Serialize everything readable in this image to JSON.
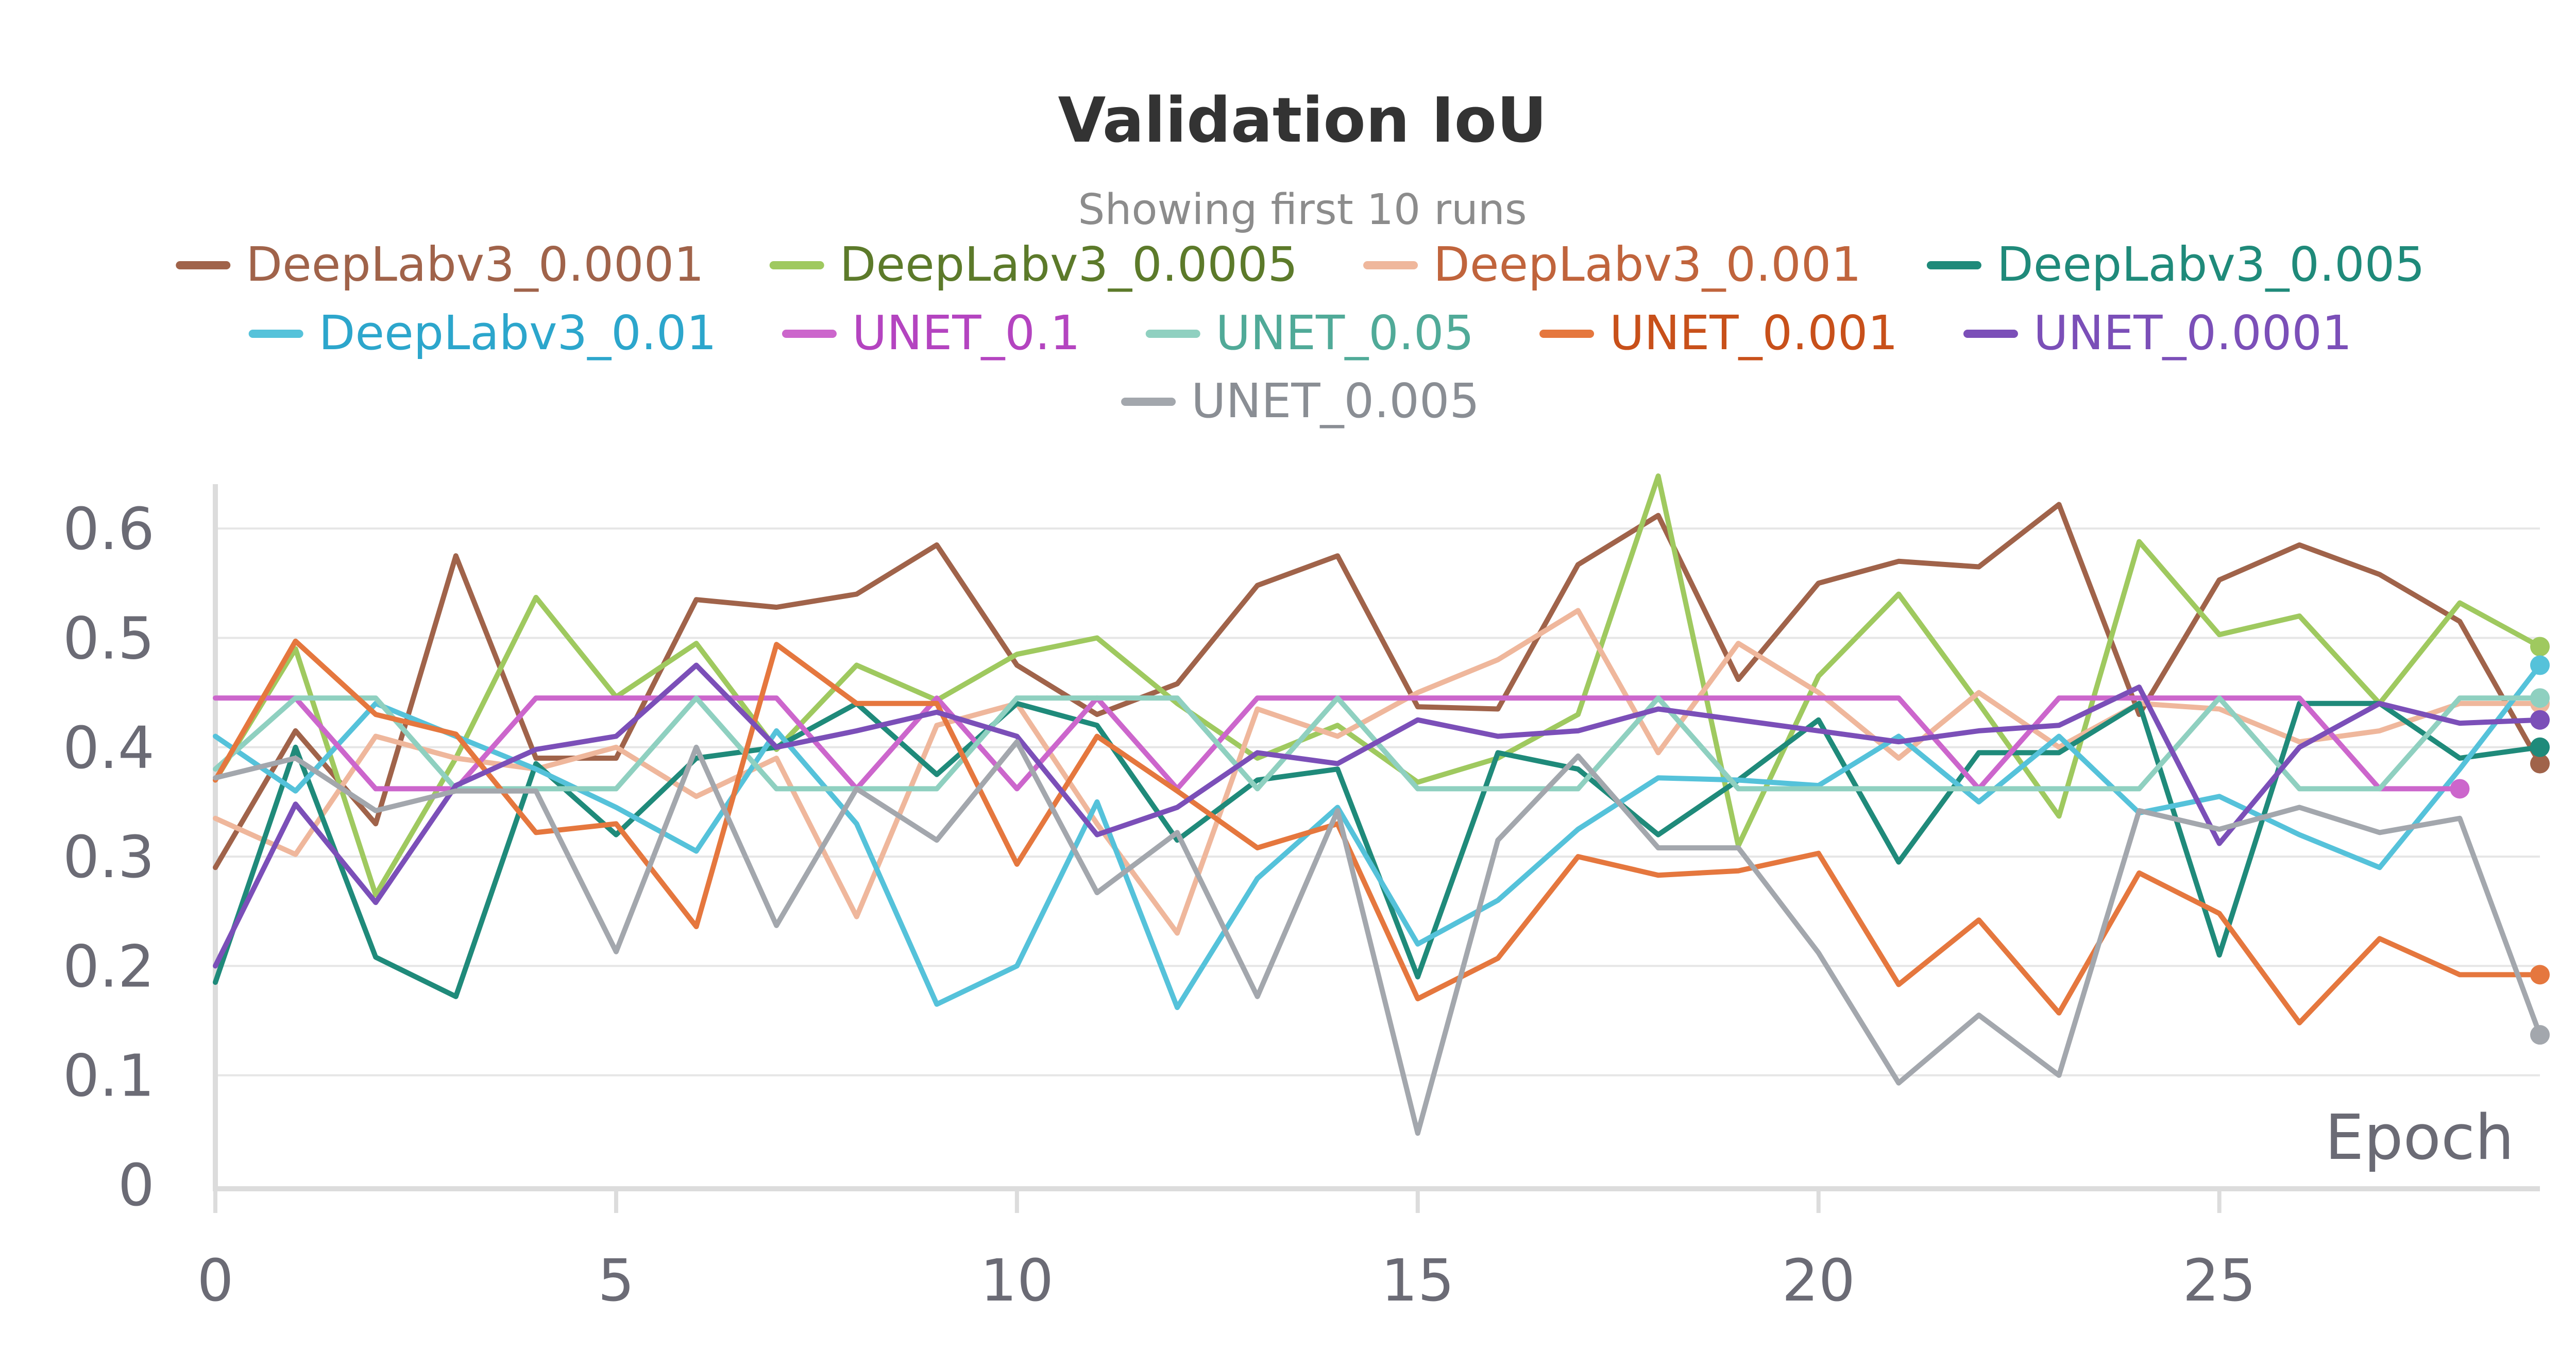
{
  "chart_data": {
    "type": "line",
    "title": "Validation IoU",
    "subtitle": "Showing first 10 runs",
    "xlabel": "Epoch",
    "ylabel": "",
    "xlim": [
      0,
      29
    ],
    "ylim": [
      0,
      0.65
    ],
    "xticks": [
      0,
      5,
      10,
      15,
      20,
      25
    ],
    "yticks": [
      0,
      0.1,
      0.2,
      0.3,
      0.4,
      0.5,
      0.6
    ],
    "xtick_labels": [
      "0",
      "5",
      "10",
      "15",
      "20",
      "25"
    ],
    "ytick_labels": [
      "0",
      "0.1",
      "0.2",
      "0.3",
      "0.4",
      "0.5",
      "0.6"
    ],
    "grid": true,
    "legend_position": "top",
    "series": [
      {
        "name": "DeepLabv3_0.0001",
        "color": "#a0634a",
        "text_color": "#a0634a",
        "values": [
          0.29,
          0.415,
          0.33,
          0.575,
          0.39,
          0.39,
          0.535,
          0.528,
          0.54,
          0.585,
          0.475,
          0.43,
          0.458,
          0.548,
          0.575,
          0.437,
          0.435,
          0.567,
          0.612,
          0.462,
          0.55,
          0.57,
          0.565,
          0.622,
          0.43,
          0.553,
          0.585,
          0.558,
          0.515,
          0.385
        ]
      },
      {
        "name": "DeepLabv3_0.0005",
        "color": "#9fc95f",
        "text_color": "#5c7a2a",
        "values": [
          0.37,
          0.49,
          0.265,
          0.39,
          0.537,
          0.446,
          0.495,
          0.398,
          0.475,
          0.443,
          0.485,
          0.5,
          0.44,
          0.39,
          0.42,
          0.368,
          0.39,
          0.43,
          0.648,
          0.31,
          0.465,
          0.54,
          0.44,
          0.337,
          0.588,
          0.503,
          0.52,
          0.44,
          0.532,
          0.492
        ]
      },
      {
        "name": "DeepLabv3_0.001",
        "color": "#efb79c",
        "text_color": "#c0643c",
        "values": [
          0.335,
          0.302,
          0.41,
          0.39,
          0.38,
          0.4,
          0.355,
          0.39,
          0.245,
          0.42,
          0.44,
          0.33,
          0.23,
          0.435,
          0.41,
          0.45,
          0.48,
          0.525,
          0.395,
          0.495,
          0.45,
          0.39,
          0.45,
          0.4,
          0.44,
          0.435,
          0.405,
          0.415,
          0.44,
          0.44
        ]
      },
      {
        "name": "DeepLabv3_0.005",
        "color": "#1f8a7a",
        "text_color": "#1f8a7a",
        "values": [
          0.185,
          0.4,
          0.208,
          0.172,
          0.385,
          0.32,
          0.39,
          0.4,
          0.44,
          0.375,
          0.44,
          0.42,
          0.315,
          0.37,
          0.38,
          0.19,
          0.395,
          0.38,
          0.32,
          0.37,
          0.425,
          0.295,
          0.395,
          0.395,
          0.44,
          0.21,
          0.44,
          0.44,
          0.39,
          0.4
        ]
      },
      {
        "name": "DeepLabv3_0.01",
        "color": "#55c2da",
        "text_color": "#2ca6cc",
        "values": [
          0.41,
          0.36,
          0.44,
          0.41,
          0.38,
          0.345,
          0.305,
          0.415,
          0.33,
          0.165,
          0.2,
          0.35,
          0.162,
          0.28,
          0.345,
          0.22,
          0.26,
          0.325,
          0.372,
          0.37,
          0.365,
          0.41,
          0.35,
          0.41,
          0.34,
          0.355,
          0.32,
          0.29,
          0.38,
          0.475
        ]
      },
      {
        "name": "UNET_0.1",
        "color": "#cc66cc",
        "text_color": "#b444c0",
        "values": [
          0.445,
          0.445,
          0.362,
          0.362,
          0.445,
          0.445,
          0.445,
          0.445,
          0.362,
          0.445,
          0.362,
          0.445,
          0.362,
          0.445,
          0.445,
          0.445,
          0.445,
          0.445,
          0.445,
          0.445,
          0.445,
          0.445,
          0.362,
          0.445,
          0.445,
          0.445,
          0.445,
          0.362,
          0.362,
          null
        ]
      },
      {
        "name": "UNET_0.05",
        "color": "#8fd0c0",
        "text_color": "#50aa98",
        "values": [
          0.38,
          0.445,
          0.445,
          0.362,
          0.362,
          0.362,
          0.445,
          0.362,
          0.362,
          0.362,
          0.445,
          0.445,
          0.445,
          0.362,
          0.445,
          0.362,
          0.362,
          0.362,
          0.445,
          0.362,
          0.362,
          0.362,
          0.362,
          0.362,
          0.362,
          0.445,
          0.362,
          0.362,
          0.445,
          0.445
        ]
      },
      {
        "name": "UNET_0.001",
        "color": "#e5773e",
        "text_color": "#c8501a",
        "values": [
          0.37,
          0.497,
          0.43,
          0.412,
          0.322,
          0.33,
          0.236,
          0.494,
          0.44,
          0.44,
          0.293,
          0.41,
          0.36,
          0.308,
          0.33,
          0.17,
          0.207,
          0.3,
          0.283,
          0.287,
          0.303,
          0.183,
          0.242,
          0.157,
          0.285,
          0.248,
          0.148,
          0.225,
          0.192,
          0.192
        ]
      },
      {
        "name": "UNET_0.0001",
        "color": "#7b4fb8",
        "text_color": "#7b4fb8",
        "values": [
          0.2,
          0.348,
          0.258,
          0.365,
          0.398,
          0.41,
          0.475,
          0.4,
          0.415,
          0.432,
          0.41,
          0.32,
          0.345,
          0.395,
          0.385,
          0.425,
          0.41,
          0.415,
          0.435,
          0.425,
          0.415,
          0.405,
          0.415,
          0.42,
          0.455,
          0.312,
          0.4,
          0.44,
          0.422,
          0.425
        ]
      },
      {
        "name": "UNET_0.005",
        "color": "#a3a7ad",
        "text_color": "#8a8e94",
        "values": [
          0.372,
          0.39,
          0.342,
          0.36,
          0.36,
          0.213,
          0.4,
          0.237,
          0.362,
          0.315,
          0.405,
          0.267,
          0.322,
          0.172,
          0.342,
          0.047,
          0.315,
          0.392,
          0.308,
          0.308,
          0.212,
          0.093,
          0.155,
          0.1,
          0.342,
          0.325,
          0.345,
          0.322,
          0.335,
          0.137
        ]
      }
    ]
  }
}
